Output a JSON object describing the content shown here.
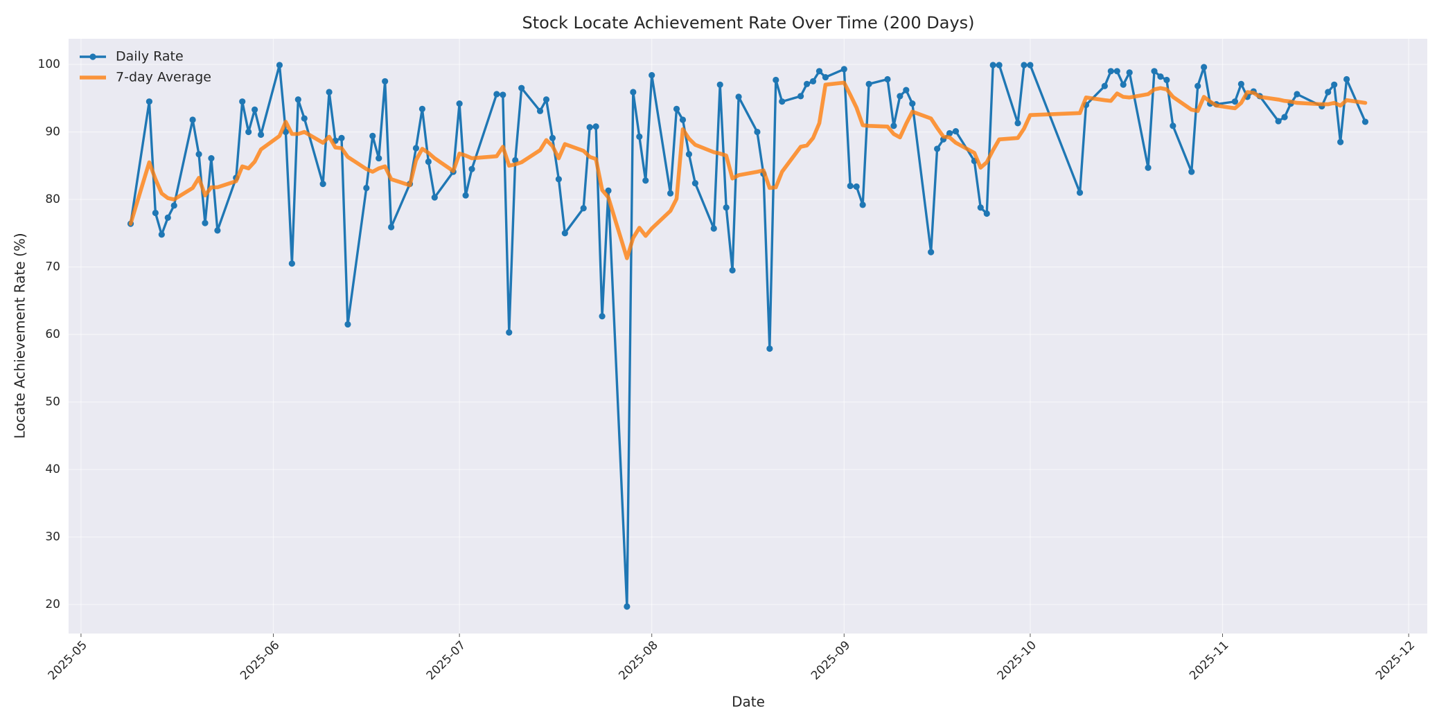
{
  "chart_data": {
    "type": "line",
    "title": "Stock Locate Achievement Rate Over Time (200 Days)",
    "xlabel": "Date",
    "ylabel": "Locate Achievement Rate (%)",
    "x": [
      "2025-05-09",
      "2025-05-12",
      "2025-05-13",
      "2025-05-14",
      "2025-05-15",
      "2025-05-16",
      "2025-05-19",
      "2025-05-20",
      "2025-05-21",
      "2025-05-22",
      "2025-05-23",
      "2025-05-26",
      "2025-05-27",
      "2025-05-28",
      "2025-05-29",
      "2025-05-30",
      "2025-06-02",
      "2025-06-03",
      "2025-06-04",
      "2025-06-05",
      "2025-06-06",
      "2025-06-09",
      "2025-06-10",
      "2025-06-11",
      "2025-06-12",
      "2025-06-13",
      "2025-06-16",
      "2025-06-17",
      "2025-06-18",
      "2025-06-19",
      "2025-06-20",
      "2025-06-23",
      "2025-06-24",
      "2025-06-25",
      "2025-06-26",
      "2025-06-27",
      "2025-06-30",
      "2025-07-01",
      "2025-07-02",
      "2025-07-03",
      "2025-07-07",
      "2025-07-08",
      "2025-07-09",
      "2025-07-10",
      "2025-07-11",
      "2025-07-14",
      "2025-07-15",
      "2025-07-16",
      "2025-07-17",
      "2025-07-18",
      "2025-07-21",
      "2025-07-22",
      "2025-07-23",
      "2025-07-24",
      "2025-07-25",
      "2025-07-28",
      "2025-07-29",
      "2025-07-30",
      "2025-07-31",
      "2025-08-01",
      "2025-08-04",
      "2025-08-05",
      "2025-08-06",
      "2025-08-07",
      "2025-08-08",
      "2025-08-11",
      "2025-08-12",
      "2025-08-13",
      "2025-08-14",
      "2025-08-15",
      "2025-08-18",
      "2025-08-19",
      "2025-08-20",
      "2025-08-21",
      "2025-08-22",
      "2025-08-25",
      "2025-08-26",
      "2025-08-27",
      "2025-08-28",
      "2025-08-29",
      "2025-09-01",
      "2025-09-02",
      "2025-09-03",
      "2025-09-04",
      "2025-09-05",
      "2025-09-08",
      "2025-09-09",
      "2025-09-10",
      "2025-09-11",
      "2025-09-12",
      "2025-09-15",
      "2025-09-16",
      "2025-09-17",
      "2025-09-18",
      "2025-09-19",
      "2025-09-22",
      "2025-09-23",
      "2025-09-24",
      "2025-09-25",
      "2025-09-26",
      "2025-09-29",
      "2025-09-30",
      "2025-10-01",
      "2025-10-09",
      "2025-10-10",
      "2025-10-13",
      "2025-10-14",
      "2025-10-15",
      "2025-10-16",
      "2025-10-17",
      "2025-10-20",
      "2025-10-21",
      "2025-10-22",
      "2025-10-23",
      "2025-10-24",
      "2025-10-27",
      "2025-10-28",
      "2025-10-29",
      "2025-10-30",
      "2025-10-31",
      "2025-11-03",
      "2025-11-04",
      "2025-11-05",
      "2025-11-06",
      "2025-11-07",
      "2025-11-10",
      "2025-11-11",
      "2025-11-12",
      "2025-11-13",
      "2025-11-17",
      "2025-11-18",
      "2025-11-19",
      "2025-11-20",
      "2025-11-21",
      "2025-11-24"
    ],
    "series": [
      {
        "name": "Daily Rate",
        "color": "#1f77b4",
        "marker": true,
        "values": [
          76.4,
          94.5,
          78.0,
          74.8,
          77.3,
          79.1,
          91.8,
          86.7,
          76.5,
          86.1,
          75.4,
          83.2,
          94.5,
          90.0,
          93.3,
          89.6,
          99.9,
          90.0,
          70.5,
          94.8,
          92.0,
          82.3,
          95.9,
          88.7,
          89.1,
          61.5,
          81.7,
          89.4,
          86.1,
          97.5,
          75.9,
          82.3,
          87.6,
          93.4,
          85.6,
          80.3,
          84.1,
          94.2,
          80.6,
          84.5,
          95.6,
          95.5,
          60.3,
          85.8,
          96.5,
          93.1,
          94.8,
          89.1,
          83.0,
          75.0,
          78.7,
          90.7,
          90.8,
          62.7,
          81.3,
          19.7,
          95.9,
          89.3,
          82.8,
          98.4,
          80.9,
          93.4,
          91.8,
          86.7,
          82.4,
          75.7,
          97.0,
          78.8,
          69.5,
          95.2,
          90.0,
          83.8,
          57.9,
          97.7,
          94.5,
          95.3,
          97.1,
          97.5,
          99.0,
          98.1,
          99.3,
          82.0,
          81.9,
          79.2,
          97.1,
          97.8,
          90.9,
          95.3,
          96.2,
          94.2,
          72.2,
          87.5,
          88.9,
          89.8,
          90.1,
          85.7,
          78.8,
          77.9,
          99.9,
          99.9,
          91.3,
          99.9,
          99.9,
          81.0,
          94.0,
          96.8,
          99.0,
          99.0,
          97.0,
          98.8,
          84.7,
          99.0,
          98.2,
          97.7,
          90.9,
          84.1,
          96.8,
          99.6,
          94.2,
          94.1,
          94.5,
          97.1,
          95.2,
          96.0,
          95.3,
          91.6,
          92.2,
          94.2,
          95.6,
          93.8,
          95.9,
          97.0,
          88.5,
          97.8,
          91.5
        ]
      },
      {
        "name": "7-day Average",
        "color": "#ff7f0e",
        "marker": false,
        "values": [
          76.4,
          85.5,
          83.0,
          80.9,
          80.2,
          80.0,
          81.7,
          83.2,
          80.6,
          81.8,
          81.8,
          82.7,
          84.9,
          84.6,
          85.6,
          87.4,
          89.4,
          91.5,
          89.7,
          89.7,
          90.0,
          88.4,
          89.3,
          87.7,
          87.6,
          86.3,
          84.5,
          84.1,
          84.6,
          84.9,
          83.0,
          82.1,
          85.8,
          87.5,
          86.9,
          86.1,
          84.2,
          86.8,
          86.5,
          86.1,
          86.4,
          87.8,
          85.0,
          85.2,
          85.5,
          87.3,
          88.8,
          87.9,
          86.1,
          88.2,
          87.2,
          86.3,
          86.0,
          81.4,
          80.3,
          71.3,
          74.3,
          75.8,
          74.6,
          75.7,
          78.3,
          80.1,
          90.4,
          89.0,
          88.1,
          87.0,
          86.8,
          86.5,
          83.1,
          83.6,
          84.1,
          84.3,
          81.7,
          81.8,
          84.1,
          87.8,
          88.0,
          89.1,
          91.3,
          97.0,
          97.3,
          95.5,
          93.6,
          91.0,
          90.9,
          90.8,
          89.7,
          89.2,
          91.2,
          93.0,
          92.0,
          90.6,
          89.3,
          89.2,
          88.4,
          86.9,
          84.7,
          85.5,
          87.3,
          88.9,
          89.1,
          90.5,
          92.5,
          92.8,
          95.1,
          94.7,
          94.6,
          95.7,
          95.2,
          95.1,
          95.6,
          96.3,
          96.5,
          96.3,
          95.2,
          93.3,
          93.1,
          95.2,
          94.5,
          93.9,
          93.5,
          94.3,
          95.9,
          95.8,
          95.2,
          94.8,
          94.6,
          94.5,
          94.3,
          94.1,
          94.1,
          94.3,
          93.9,
          94.7,
          94.3
        ]
      }
    ],
    "xlim": [
      "2025-04-29",
      "2025-12-04"
    ],
    "xticks": [
      {
        "value": "2025-05-01",
        "label": "2025-05"
      },
      {
        "value": "2025-06-01",
        "label": "2025-06"
      },
      {
        "value": "2025-07-01",
        "label": "2025-07"
      },
      {
        "value": "2025-08-01",
        "label": "2025-08"
      },
      {
        "value": "2025-09-01",
        "label": "2025-09"
      },
      {
        "value": "2025-10-01",
        "label": "2025-10"
      },
      {
        "value": "2025-11-01",
        "label": "2025-11"
      },
      {
        "value": "2025-12-01",
        "label": "2025-12"
      }
    ],
    "ylim": [
      15.7,
      103.8
    ],
    "yticks": [
      20,
      30,
      40,
      50,
      60,
      70,
      80,
      90,
      100
    ],
    "grid": true,
    "legend": "upper left"
  }
}
